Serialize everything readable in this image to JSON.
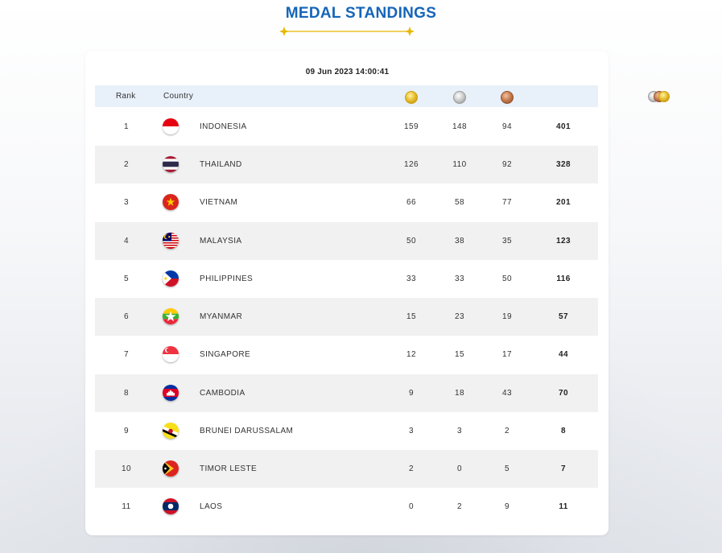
{
  "page": {
    "title": "MEDAL STANDINGS",
    "timestamp": "09 Jun 2023  14:00:41"
  },
  "table": {
    "headers": {
      "rank": "Rank",
      "country": "Country",
      "gold_icon": "gold-medal-icon",
      "silver_icon": "silver-medal-icon",
      "bronze_icon": "bronze-medal-icon",
      "total_icon": "total-medals-icon"
    },
    "rows": [
      {
        "rank": "1",
        "country": "INDONESIA",
        "gold": "159",
        "silver": "148",
        "bronze": "94",
        "total": "401",
        "flag": "indonesia-flag-icon"
      },
      {
        "rank": "2",
        "country": "THAILAND",
        "gold": "126",
        "silver": "110",
        "bronze": "92",
        "total": "328",
        "flag": "thailand-flag-icon"
      },
      {
        "rank": "3",
        "country": "VIETNAM",
        "gold": "66",
        "silver": "58",
        "bronze": "77",
        "total": "201",
        "flag": "vietnam-flag-icon"
      },
      {
        "rank": "4",
        "country": "MALAYSIA",
        "gold": "50",
        "silver": "38",
        "bronze": "35",
        "total": "123",
        "flag": "malaysia-flag-icon"
      },
      {
        "rank": "5",
        "country": "PHILIPPINES",
        "gold": "33",
        "silver": "33",
        "bronze": "50",
        "total": "116",
        "flag": "philippines-flag-icon"
      },
      {
        "rank": "6",
        "country": "MYANMAR",
        "gold": "15",
        "silver": "23",
        "bronze": "19",
        "total": "57",
        "flag": "myanmar-flag-icon"
      },
      {
        "rank": "7",
        "country": "SINGAPORE",
        "gold": "12",
        "silver": "15",
        "bronze": "17",
        "total": "44",
        "flag": "singapore-flag-icon"
      },
      {
        "rank": "8",
        "country": "CAMBODIA",
        "gold": "9",
        "silver": "18",
        "bronze": "43",
        "total": "70",
        "flag": "cambodia-flag-icon"
      },
      {
        "rank": "9",
        "country": "BRUNEI DARUSSALAM",
        "gold": "3",
        "silver": "3",
        "bronze": "2",
        "total": "8",
        "flag": "brunei-flag-icon"
      },
      {
        "rank": "10",
        "country": "TIMOR LESTE",
        "gold": "2",
        "silver": "0",
        "bronze": "5",
        "total": "7",
        "flag": "timor-leste-flag-icon"
      },
      {
        "rank": "11",
        "country": "LAOS",
        "gold": "0",
        "silver": "2",
        "bronze": "9",
        "total": "11",
        "flag": "laos-flag-icon"
      }
    ]
  },
  "colors": {
    "title": "#1565b8",
    "header_bg": "#e8f0f9",
    "alt_row_bg": "#f1f1f1",
    "deco_gold": "#e6b800"
  }
}
